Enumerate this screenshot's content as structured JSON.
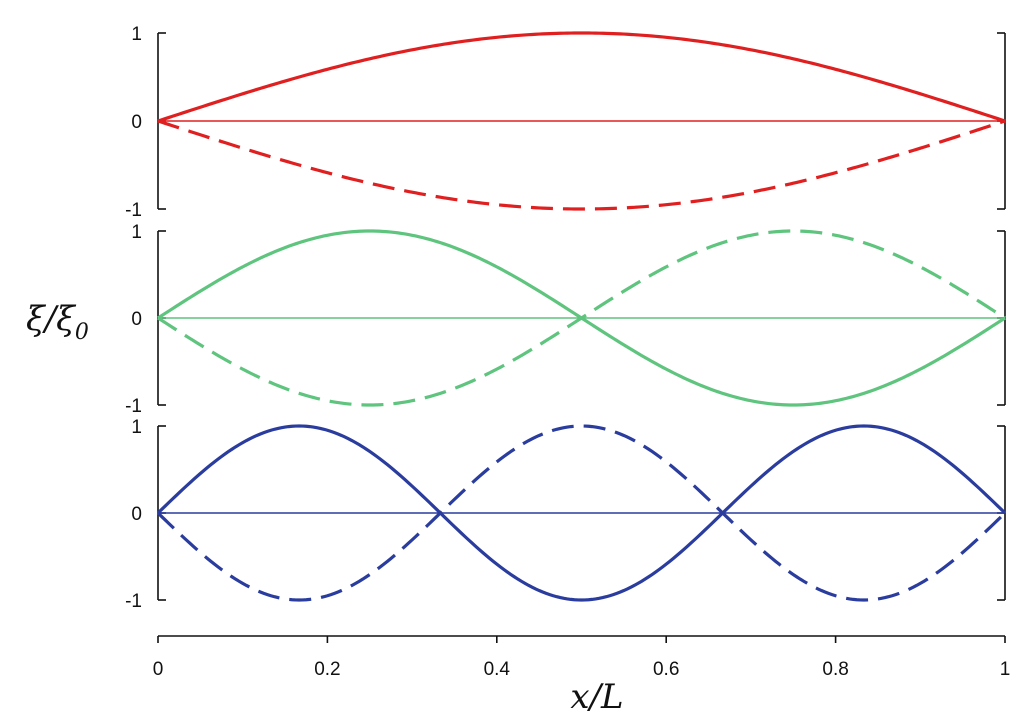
{
  "chart_data": {
    "type": "line",
    "xlabel": "x/L",
    "ylabel": "ξ/ξ₀",
    "ylabel_main": "ξ/ξ",
    "ylabel_sub": "0",
    "xlim": [
      0,
      1
    ],
    "x_ticks": [
      "0",
      "0.2",
      "0.4",
      "0.6",
      "0.8",
      "1"
    ],
    "x_tick_values": [
      0,
      0.2,
      0.4,
      0.6,
      0.8,
      1
    ],
    "ylim": [
      -1,
      1
    ],
    "y_ticks": [
      "1",
      "0",
      "-1"
    ],
    "y_tick_values": [
      1,
      0,
      -1
    ],
    "grid": false,
    "panels": [
      {
        "mode": 1,
        "color": "#e02020",
        "series": [
          {
            "style": "solid",
            "function": "sin(1·π·x/L)",
            "x": [
              0,
              0.1,
              0.2,
              0.3,
              0.4,
              0.5,
              0.6,
              0.7,
              0.8,
              0.9,
              1
            ],
            "y": [
              0,
              0.31,
              0.59,
              0.81,
              0.95,
              1,
              0.95,
              0.81,
              0.59,
              0.31,
              0
            ]
          },
          {
            "style": "dashed",
            "function": "-sin(1·π·x/L)",
            "x": [
              0,
              0.1,
              0.2,
              0.3,
              0.4,
              0.5,
              0.6,
              0.7,
              0.8,
              0.9,
              1
            ],
            "y": [
              0,
              -0.31,
              -0.59,
              -0.81,
              -0.95,
              -1,
              -0.95,
              -0.81,
              -0.59,
              -0.31,
              0
            ]
          },
          {
            "style": "baseline",
            "x": [
              0,
              1
            ],
            "y": [
              0,
              0
            ]
          }
        ]
      },
      {
        "mode": 2,
        "color": "#5ec47e",
        "series": [
          {
            "style": "solid",
            "function": "sin(2·π·x/L)",
            "x": [
              0,
              0.125,
              0.25,
              0.375,
              0.5,
              0.625,
              0.75,
              0.875,
              1
            ],
            "y": [
              0,
              0.71,
              1,
              0.71,
              0,
              -0.71,
              -1,
              -0.71,
              0
            ]
          },
          {
            "style": "dashed",
            "function": "-sin(2·π·x/L)",
            "x": [
              0,
              0.125,
              0.25,
              0.375,
              0.5,
              0.625,
              0.75,
              0.875,
              1
            ],
            "y": [
              0,
              -0.71,
              -1,
              -0.71,
              0,
              0.71,
              1,
              0.71,
              0
            ]
          },
          {
            "style": "baseline",
            "x": [
              0,
              1
            ],
            "y": [
              0,
              0
            ]
          }
        ]
      },
      {
        "mode": 3,
        "color": "#2a3d9e",
        "series": [
          {
            "style": "solid",
            "function": "sin(3·π·x/L)",
            "x": [
              0,
              0.0833,
              0.1667,
              0.25,
              0.3333,
              0.4167,
              0.5,
              0.5833,
              0.6667,
              0.75,
              0.8333,
              0.9167,
              1
            ],
            "y": [
              0,
              0.71,
              1,
              0.71,
              0,
              -0.71,
              -1,
              -0.71,
              0,
              0.71,
              1,
              0.71,
              0
            ]
          },
          {
            "style": "dashed",
            "function": "-sin(3·π·x/L)",
            "x": [
              0,
              0.0833,
              0.1667,
              0.25,
              0.3333,
              0.4167,
              0.5,
              0.5833,
              0.6667,
              0.75,
              0.8333,
              0.9167,
              1
            ],
            "y": [
              0,
              -0.71,
              -1,
              -0.71,
              0,
              0.71,
              1,
              0.71,
              0,
              -0.71,
              -1,
              -0.71,
              0
            ]
          },
          {
            "style": "baseline",
            "x": [
              0,
              1
            ],
            "y": [
              0,
              0
            ]
          }
        ]
      }
    ]
  }
}
